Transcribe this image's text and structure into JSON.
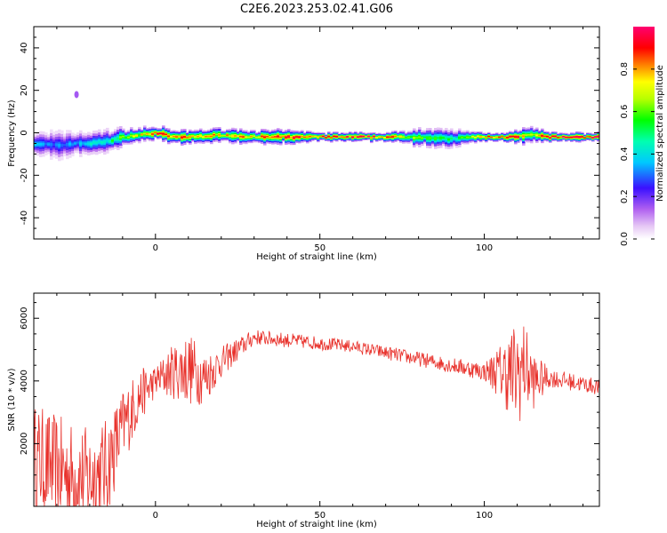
{
  "title": "C2E6.2023.253.02.41.G06",
  "chart_data": [
    {
      "type": "heatmap",
      "xlabel": "Height of straight line (km)",
      "ylabel": "Frequency (Hz)",
      "xlim": [
        -37,
        135
      ],
      "ylim": [
        -50,
        50
      ],
      "x_ticks": [
        0,
        50,
        100
      ],
      "y_ticks": [
        -40,
        -20,
        0,
        20,
        40
      ],
      "colorbar": {
        "label": "Normalized spectral amplitude",
        "ticks": [
          0.0,
          0.2,
          0.4,
          0.6,
          0.8
        ],
        "range": [
          0,
          1
        ]
      },
      "ridge": {
        "x": [
          -37,
          -30,
          -25,
          -20,
          -15,
          -10,
          -5,
          0,
          5,
          10,
          20,
          30,
          40,
          50,
          60,
          70,
          80,
          90,
          95,
          100,
          105,
          110,
          113,
          120,
          130,
          135
        ],
        "freq": [
          -5,
          -6,
          -5,
          -5,
          -4,
          -2,
          -1,
          0,
          -2,
          -2,
          -1,
          -2,
          -2,
          -2,
          -2,
          -2,
          -2,
          -3,
          -2,
          -2,
          -2,
          -2,
          -1,
          -2,
          -2,
          -2
        ],
        "amp": [
          0.35,
          0.3,
          0.35,
          0.4,
          0.45,
          0.6,
          0.7,
          0.85,
          0.8,
          0.8,
          0.75,
          0.8,
          0.85,
          0.9,
          0.9,
          0.85,
          0.55,
          0.5,
          0.6,
          0.85,
          0.9,
          0.85,
          0.6,
          0.95,
          0.95,
          0.95
        ],
        "halfwidth": [
          5,
          6,
          5,
          5,
          5,
          4,
          3,
          3,
          3,
          3,
          3,
          3,
          3,
          2,
          2,
          2,
          4,
          4,
          3,
          2,
          2,
          3,
          4,
          2,
          2,
          2
        ]
      },
      "spots": [
        {
          "x": -24,
          "freq": 18,
          "amp": 0.15
        }
      ]
    },
    {
      "type": "line",
      "xlabel": "Height of straight line (km)",
      "ylabel": "SNR (10 * v/v)",
      "xlim": [
        -37,
        135
      ],
      "ylim": [
        0,
        6800
      ],
      "x_ticks": [
        0,
        50,
        100
      ],
      "y_ticks": [
        2000,
        4000,
        6000
      ],
      "color": "#e8302a",
      "trend": {
        "x": [
          -37,
          -30,
          -25,
          -20,
          -15,
          -10,
          -5,
          0,
          5,
          10,
          15,
          20,
          25,
          30,
          40,
          50,
          60,
          70,
          80,
          90,
          95,
          100,
          105,
          110,
          112,
          115,
          120,
          130,
          135
        ],
        "y": [
          1500,
          1200,
          1000,
          900,
          1200,
          2500,
          3500,
          4000,
          4300,
          4400,
          4100,
          4600,
          5000,
          5400,
          5300,
          5200,
          5100,
          4900,
          4700,
          4500,
          4400,
          4300,
          4300,
          4200,
          4500,
          4000,
          4100,
          3900,
          3800
        ]
      },
      "noise": {
        "x": [
          -37,
          -15,
          -5,
          0,
          10,
          20,
          30,
          60,
          90,
          100,
          105,
          110,
          115,
          120,
          135
        ],
        "amp": [
          1800,
          1600,
          900,
          500,
          1200,
          500,
          250,
          200,
          250,
          300,
          900,
          1800,
          900,
          300,
          250
        ]
      }
    }
  ]
}
